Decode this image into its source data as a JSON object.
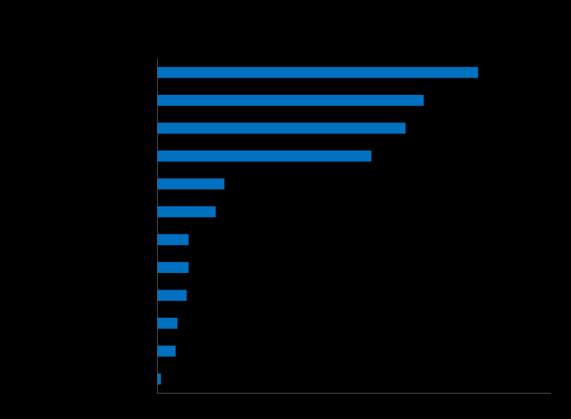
{
  "colors": {
    "background": "#000000",
    "bar": "#0070C0",
    "axis": "#595959"
  },
  "chart_data": {
    "type": "bar",
    "orientation": "horizontal",
    "title": "",
    "xlabel": "",
    "ylabel": "",
    "xlim": [
      0,
      100
    ],
    "grid": false,
    "legend": "none",
    "categories": [
      "",
      "",
      "",
      "",
      "",
      "",
      "",
      "",
      "",
      "",
      "",
      ""
    ],
    "values": [
      81.5,
      67.7,
      63.1,
      54.4,
      17.1,
      14.9,
      8.0,
      8.0,
      7.5,
      5.2,
      4.7,
      1.0
    ]
  }
}
